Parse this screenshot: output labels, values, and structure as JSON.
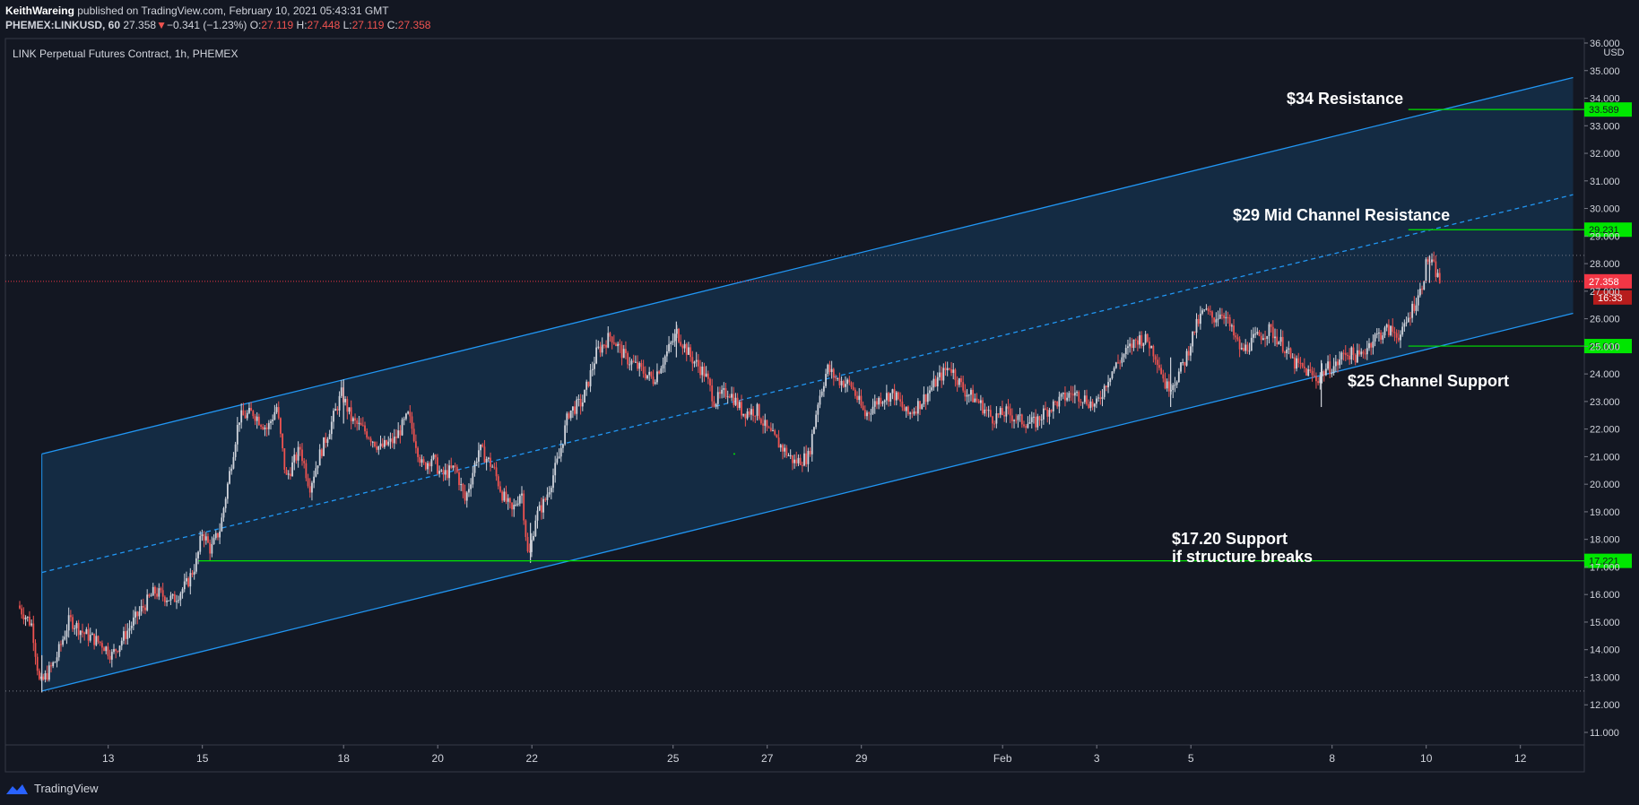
{
  "header": {
    "author": "KeithWareing",
    "published_text": "published on TradingView.com, February 10, 2021 05:43:31 GMT",
    "symbol": "PHEMEX:LINKUSD, 60",
    "last": "27.358",
    "change": "−0.341 (−1.23%)",
    "o_label": "O:",
    "o_value": "27.119",
    "h_label": "H:",
    "h_value": "27.448",
    "l_label": "L:",
    "l_value": "27.119",
    "c_label": "C:",
    "c_value": "27.358"
  },
  "chart_title": "LINK Perpetual Futures Contract, 1h, PHEMEX",
  "footer": {
    "brand": "TradingView"
  },
  "colors": {
    "background": "#131722",
    "up": "#d1d4dc",
    "down": "#ef5350",
    "channel": "#2196f3",
    "level": "#00e600",
    "current_price": "#f23645"
  },
  "chart_data": {
    "type": "candlestick",
    "x_unit": "days since Jan 11, 2021 00:00 GMT",
    "x_range": [
      0,
      33
    ],
    "y_range": [
      11,
      36
    ],
    "y_axis_unit": "USD",
    "y_ticks": [
      "11.000",
      "12.000",
      "13.000",
      "14.000",
      "15.000",
      "16.000",
      "17.000",
      "18.000",
      "19.000",
      "20.000",
      "21.000",
      "22.000",
      "23.000",
      "24.000",
      "25.000",
      "26.000",
      "27.000",
      "28.000",
      "29.000",
      "30.000",
      "31.000",
      "32.000",
      "33.000",
      "34.000",
      "35.000",
      "36.000"
    ],
    "x_ticks": [
      {
        "x": 1.88,
        "label": "13"
      },
      {
        "x": 3.88,
        "label": "15"
      },
      {
        "x": 6.88,
        "label": "18"
      },
      {
        "x": 8.88,
        "label": "20"
      },
      {
        "x": 10.88,
        "label": "22"
      },
      {
        "x": 13.88,
        "label": "25"
      },
      {
        "x": 15.88,
        "label": "27"
      },
      {
        "x": 17.88,
        "label": "29"
      },
      {
        "x": 20.88,
        "label": "Feb"
      },
      {
        "x": 22.88,
        "label": "3"
      },
      {
        "x": 24.88,
        "label": "5"
      },
      {
        "x": 27.88,
        "label": "8"
      },
      {
        "x": 29.88,
        "label": "10"
      },
      {
        "x": 31.88,
        "label": "12"
      }
    ],
    "price_path": [
      [
        0.0,
        15.6
      ],
      [
        0.3,
        14.9
      ],
      [
        0.47,
        12.7
      ],
      [
        0.8,
        13.6
      ],
      [
        1.1,
        15.1
      ],
      [
        1.4,
        14.6
      ],
      [
        1.8,
        14.2
      ],
      [
        2.0,
        13.8
      ],
      [
        2.3,
        14.6
      ],
      [
        2.6,
        15.4
      ],
      [
        2.9,
        16.1
      ],
      [
        3.3,
        15.8
      ],
      [
        3.6,
        16.4
      ],
      [
        3.8,
        17.2
      ],
      [
        3.92,
        18.3
      ],
      [
        4.1,
        17.6
      ],
      [
        4.3,
        18.4
      ],
      [
        4.5,
        20.4
      ],
      [
        4.7,
        22.4
      ],
      [
        5.0,
        22.6
      ],
      [
        5.3,
        22.0
      ],
      [
        5.5,
        22.8
      ],
      [
        5.7,
        20.2
      ],
      [
        6.0,
        21.3
      ],
      [
        6.2,
        19.9
      ],
      [
        6.4,
        21.0
      ],
      [
        6.6,
        21.9
      ],
      [
        6.88,
        23.3
      ],
      [
        7.1,
        22.3
      ],
      [
        7.4,
        21.9
      ],
      [
        7.7,
        21.3
      ],
      [
        8.0,
        21.6
      ],
      [
        8.3,
        22.5
      ],
      [
        8.6,
        20.6
      ],
      [
        8.8,
        21.0
      ],
      [
        9.0,
        20.3
      ],
      [
        9.3,
        20.6
      ],
      [
        9.5,
        19.4
      ],
      [
        9.8,
        21.3
      ],
      [
        10.1,
        20.6
      ],
      [
        10.3,
        19.6
      ],
      [
        10.5,
        19.0
      ],
      [
        10.7,
        19.8
      ],
      [
        10.85,
        17.2
      ],
      [
        11.0,
        18.8
      ],
      [
        11.2,
        19.4
      ],
      [
        11.5,
        21.0
      ],
      [
        11.7,
        22.6
      ],
      [
        12.0,
        23.0
      ],
      [
        12.3,
        24.8
      ],
      [
        12.6,
        25.4
      ],
      [
        12.9,
        24.6
      ],
      [
        13.2,
        24.2
      ],
      [
        13.5,
        23.8
      ],
      [
        13.8,
        24.8
      ],
      [
        14.0,
        25.5
      ],
      [
        14.3,
        24.6
      ],
      [
        14.6,
        24.0
      ],
      [
        14.8,
        23.0
      ],
      [
        15.1,
        23.4
      ],
      [
        15.4,
        22.6
      ],
      [
        15.7,
        22.7
      ],
      [
        15.9,
        22.0
      ],
      [
        16.2,
        21.4
      ],
      [
        16.5,
        20.8
      ],
      [
        16.8,
        21.0
      ],
      [
        17.0,
        23.0
      ],
      [
        17.2,
        24.2
      ],
      [
        17.4,
        23.8
      ],
      [
        17.7,
        23.6
      ],
      [
        18.0,
        22.5
      ],
      [
        18.3,
        23.1
      ],
      [
        18.6,
        23.3
      ],
      [
        18.9,
        22.5
      ],
      [
        19.2,
        23.0
      ],
      [
        19.5,
        23.7
      ],
      [
        19.8,
        24.3
      ],
      [
        20.1,
        23.4
      ],
      [
        20.4,
        23.0
      ],
      [
        20.7,
        22.4
      ],
      [
        21.0,
        22.6
      ],
      [
        21.3,
        22.3
      ],
      [
        21.6,
        22.2
      ],
      [
        21.8,
        22.6
      ],
      [
        22.1,
        23.0
      ],
      [
        22.4,
        23.3
      ],
      [
        22.6,
        23.2
      ],
      [
        22.9,
        22.8
      ],
      [
        23.2,
        24.0
      ],
      [
        23.5,
        24.7
      ],
      [
        23.8,
        25.3
      ],
      [
        24.0,
        25.2
      ],
      [
        24.2,
        24.6
      ],
      [
        24.4,
        23.5
      ],
      [
        24.6,
        23.8
      ],
      [
        24.8,
        24.5
      ],
      [
        25.0,
        25.6
      ],
      [
        25.2,
        26.3
      ],
      [
        25.4,
        26.0
      ],
      [
        25.6,
        26.3
      ],
      [
        25.8,
        25.5
      ],
      [
        26.0,
        24.8
      ],
      [
        26.3,
        25.3
      ],
      [
        26.6,
        25.6
      ],
      [
        26.9,
        25.0
      ],
      [
        27.1,
        24.4
      ],
      [
        27.3,
        24.2
      ],
      [
        27.6,
        23.8
      ],
      [
        27.8,
        24.2
      ],
      [
        28.0,
        24.3
      ],
      [
        28.2,
        24.8
      ],
      [
        28.5,
        24.6
      ],
      [
        28.8,
        25.3
      ],
      [
        29.1,
        25.6
      ],
      [
        29.4,
        25.4
      ],
      [
        29.6,
        26.3
      ],
      [
        29.8,
        27.0
      ],
      [
        29.95,
        28.2
      ],
      [
        30.1,
        27.8
      ],
      [
        30.2,
        27.36
      ]
    ],
    "wicks": [
      {
        "x": 10.85,
        "low": 17.15,
        "high": 18.6
      },
      {
        "x": 0.47,
        "low": 12.45,
        "high": 13.8
      },
      {
        "x": 27.65,
        "low": 22.8,
        "high": 24.5
      },
      {
        "x": 29.95,
        "low": 27.3,
        "high": 28.3
      },
      {
        "x": 24.45,
        "low": 22.8,
        "high": 24.6
      },
      {
        "x": 13.95,
        "low": 24.6,
        "high": 25.9
      },
      {
        "x": 6.88,
        "low": 22.2,
        "high": 23.8
      }
    ],
    "channel": {
      "upper": [
        [
          0.47,
          21.1
        ],
        [
          33.0,
          34.75
        ]
      ],
      "mid": [
        [
          0.47,
          16.8
        ],
        [
          33.0,
          30.5
        ]
      ],
      "lower": [
        [
          0.47,
          12.5
        ],
        [
          33.0,
          26.2
        ]
      ]
    },
    "levels": [
      {
        "price": 33.589,
        "label": "33.589",
        "from_x": 29.5,
        "text": "$34 Resistance"
      },
      {
        "price": 29.231,
        "label": "29.231",
        "from_x": 29.5,
        "text": "$29 Mid Channel Resistance"
      },
      {
        "price": 25.01,
        "label": "25.010",
        "from_x": 29.5,
        "text": "$25 Channel Support"
      },
      {
        "price": 17.221,
        "label": "17.221",
        "from_x": 3.8,
        "text_line1": "$17.20 Support",
        "text_line2": "if structure breaks"
      }
    ],
    "current_price": {
      "price": 27.358,
      "label": "27.358",
      "countdown": "16:33"
    },
    "dotted_levels": [
      28.3,
      12.5
    ]
  }
}
